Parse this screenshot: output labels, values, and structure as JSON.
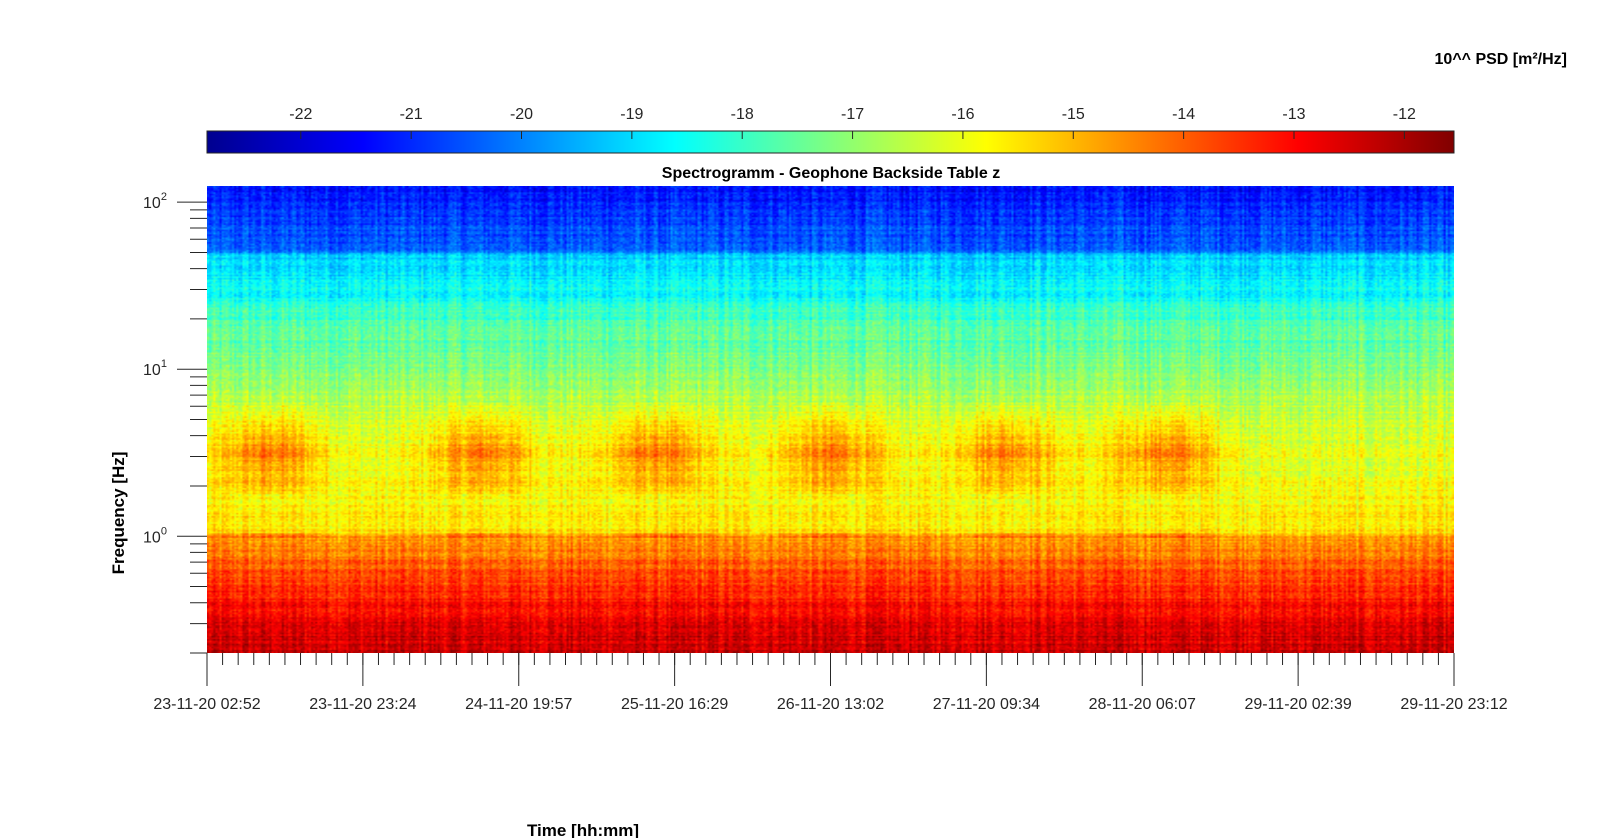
{
  "chart_data": {
    "type": "heatmap",
    "title": "Spectrogramm - Geophone Backside Table z",
    "xlabel": "Time [hh:mm]",
    "ylabel": "Frequency [Hz]",
    "x_scale": "time",
    "y_scale": "log",
    "xlim": [
      "23-11-20 02:52",
      "29-11-20 23:12"
    ],
    "ylim": [
      0.2,
      125
    ],
    "x_ticks": [
      "23-11-20 02:52",
      "23-11-20 23:24",
      "24-11-20 19:57",
      "25-11-20 16:29",
      "26-11-20 13:02",
      "27-11-20 09:34",
      "28-11-20 06:07",
      "29-11-20 02:39",
      "29-11-20 23:12"
    ],
    "y_ticks": [
      {
        "value": 1,
        "base": "10",
        "exp": "0"
      },
      {
        "value": 10,
        "base": "10",
        "exp": "1"
      },
      {
        "value": 100,
        "base": "10",
        "exp": "2"
      }
    ],
    "colorbar": {
      "label": "10^^ PSD [m²/Hz]",
      "location": "top",
      "range": [
        -22.85,
        -11.55
      ],
      "ticks": [
        "-22",
        "-21",
        "-20",
        "-19",
        "-18",
        "-17",
        "-16",
        "-15",
        "-14",
        "-13",
        "-12"
      ],
      "tick_values": [
        -22,
        -21,
        -20,
        -19,
        -18,
        -17,
        -16,
        -15,
        -14,
        -13,
        -12
      ],
      "colormap": "jet"
    },
    "grid": false
  }
}
